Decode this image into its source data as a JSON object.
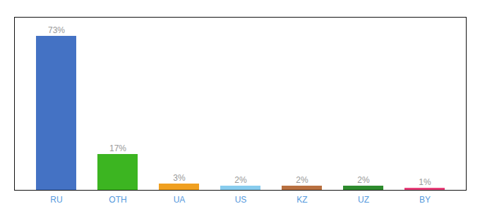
{
  "chart_data": {
    "type": "bar",
    "categories": [
      "RU",
      "OTH",
      "UA",
      "US",
      "KZ",
      "UZ",
      "BY"
    ],
    "values": [
      73,
      17,
      3,
      2,
      2,
      2,
      1
    ],
    "value_labels": [
      "73%",
      "17%",
      "3%",
      "2%",
      "2%",
      "2%",
      "1%"
    ],
    "colors": [
      "#4472c4",
      "#3cb521",
      "#f0a020",
      "#88ccee",
      "#b87040",
      "#2e8b2e",
      "#e8407a"
    ],
    "ylim": [
      0,
      82
    ],
    "data_labels": true,
    "tick_labels": "x",
    "grid": false
  }
}
